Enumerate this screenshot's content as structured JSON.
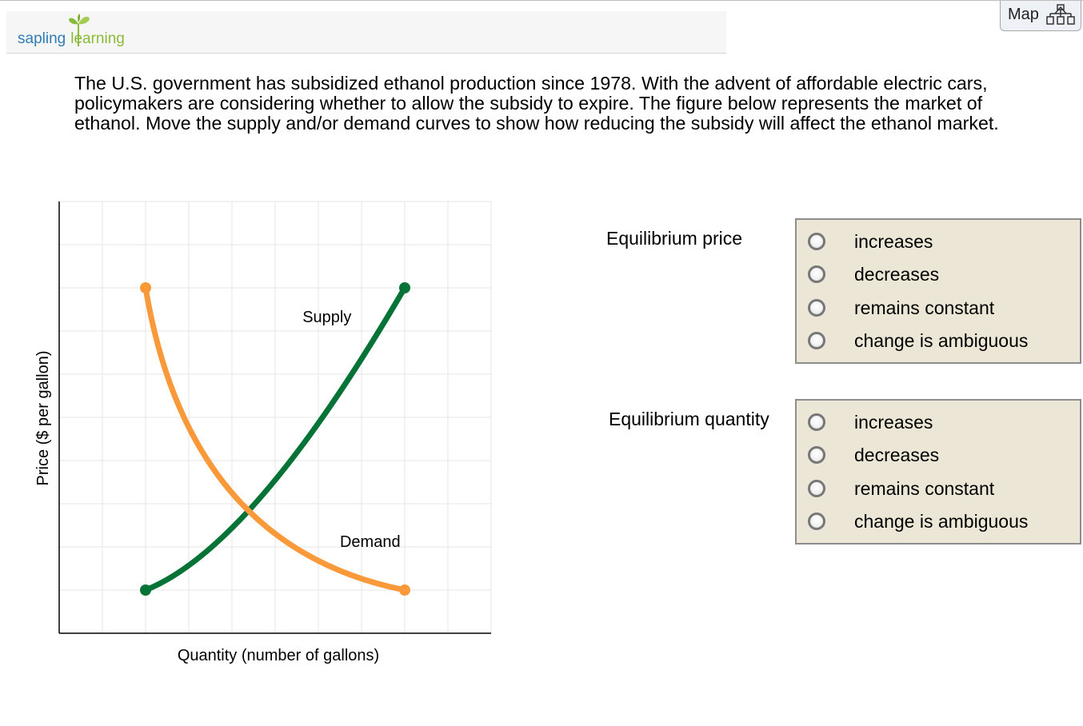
{
  "header": {
    "logo_word1": "sapling",
    "logo_word2": "learning",
    "map_label": "Map"
  },
  "question": {
    "text": "The U.S. government has subsidized ethanol production since 1978. With the advent of affordable electric cars, policymakers are considering whether to allow the subsidy to expire. The figure below represents the market of ethanol. Move the supply and/or demand curves to show how reducing the subsidy will affect the ethanol market."
  },
  "chart_data": {
    "type": "line",
    "xlabel": "Quantity (number of gallons)",
    "ylabel": "Price ($ per gallon)",
    "xlim": [
      0,
      10
    ],
    "ylim": [
      0,
      10
    ],
    "grid": true,
    "series": [
      {
        "name": "Supply",
        "color": "#067336",
        "start": [
          2,
          1
        ],
        "control": [
          4.5,
          2
        ],
        "end": [
          8,
          8
        ],
        "label_at": [
          6.2,
          7.2
        ]
      },
      {
        "name": "Demand",
        "color": "#f9993a",
        "start": [
          2,
          8
        ],
        "control": [
          3,
          2
        ],
        "end": [
          8,
          1
        ],
        "label_at": [
          7.2,
          2
        ]
      }
    ]
  },
  "questions": [
    {
      "label": "Equilibrium price",
      "options": [
        "increases",
        "decreases",
        "remains constant",
        "change is ambiguous"
      ]
    },
    {
      "label": "Equilibrium quantity",
      "options": [
        "increases",
        "decreases",
        "remains constant",
        "change is ambiguous"
      ]
    }
  ]
}
